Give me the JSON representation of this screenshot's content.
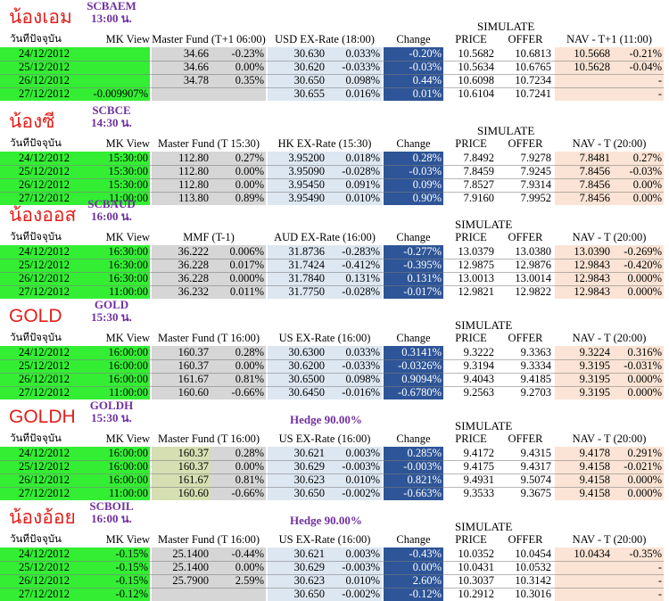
{
  "headers": {
    "date": "วันที่ปัจจุบัน",
    "mk_view": "MK View",
    "change": "Change",
    "price": "PRICE",
    "offer": "OFFER",
    "simulate": "SIMULATE"
  },
  "colors": {
    "title_red": "#e0201b",
    "code_purple": "#7030a0",
    "green": "#33ee33",
    "grey": "#d6d6d6",
    "light_blue": "#dde7f2",
    "dark_blue": "#2e5597",
    "peach": "#fbe4d5",
    "olive": "#d5dfb2"
  },
  "sections": [
    {
      "title": "น้องเอม",
      "code": "SCBAEM",
      "time": "13:00 น.",
      "hedge": "",
      "master_header": "Master Fund (T+1 06:00)",
      "fx_header": "USD EX-Rate (18:00)",
      "nav_header": "NAV - T+1 (11:00)",
      "rows": [
        {
          "date": "24/12/2012",
          "mk": "",
          "m1": "34.66",
          "m2": "-0.23%",
          "fx1": "30.630",
          "fx2": "0.033%",
          "chg": "-0.20%",
          "price": "10.5682",
          "offer": "10.6813",
          "nav1": "10.5668",
          "nav2": "-0.21%"
        },
        {
          "date": "25/12/2012",
          "mk": "",
          "m1": "34.66",
          "m2": "0.00%",
          "fx1": "30.620",
          "fx2": "-0.033%",
          "chg": "-0.03%",
          "price": "10.5634",
          "offer": "10.6765",
          "nav1": "10.5628",
          "nav2": "-0.04%"
        },
        {
          "date": "26/12/2012",
          "mk": "",
          "m1": "34.78",
          "m2": "0.35%",
          "fx1": "30.650",
          "fx2": "0.098%",
          "chg": "0.44%",
          "price": "10.6098",
          "offer": "10.7234",
          "nav1": "",
          "nav2": "-"
        },
        {
          "date": "27/12/2012",
          "mk": "-0.009907%",
          "m1": "",
          "m2": "",
          "fx1": "30.655",
          "fx2": "0.016%",
          "chg": "0.01%",
          "price": "10.6104",
          "offer": "10.7241",
          "nav1": "",
          "nav2": "-"
        }
      ]
    },
    {
      "title": "น้องซี",
      "code": "SCBCE",
      "time": "14:30 น.",
      "hedge": "",
      "master_header": "Master Fund (T 15:30)",
      "fx_header": "HK EX-Rate (15:30)",
      "nav_header": "NAV - T (20:00)",
      "rows": [
        {
          "date": "24/12/2012",
          "mk": "15:30:00",
          "m1": "112.80",
          "m2": "0.27%",
          "fx1": "3.95200",
          "fx2": "0.018%",
          "chg": "0.28%",
          "price": "7.8492",
          "offer": "7.9278",
          "nav1": "7.8481",
          "nav2": "0.27%"
        },
        {
          "date": "25/12/2012",
          "mk": "15:30:00",
          "m1": "112.80",
          "m2": "0.00%",
          "fx1": "3.95090",
          "fx2": "-0.028%",
          "chg": "-0.03%",
          "price": "7.8459",
          "offer": "7.9245",
          "nav1": "7.8456",
          "nav2": "-0.03%"
        },
        {
          "date": "26/12/2012",
          "mk": "15:30:00",
          "m1": "112.80",
          "m2": "0.00%",
          "fx1": "3.95450",
          "fx2": "0.091%",
          "chg": "0.09%",
          "price": "7.8527",
          "offer": "7.9314",
          "nav1": "7.8456",
          "nav2": "0.00%"
        },
        {
          "date": "27/12/2012",
          "mk": "11:00:00",
          "m1": "113.80",
          "m2": "0.89%",
          "fx1": "3.95490",
          "fx2": "0.010%",
          "chg": "0.90%",
          "price": "7.9160",
          "offer": "7.9952",
          "nav1": "7.8456",
          "nav2": "0.00%"
        }
      ]
    },
    {
      "title": "น้องออส",
      "code": "SCBAUD",
      "time": "16:00 น.",
      "hedge": "",
      "master_header": "MMF (T-1)",
      "fx_header": "AUD EX-Rate (16:00)",
      "nav_header": "NAV - T (20:00)",
      "rows": [
        {
          "date": "24/12/2012",
          "mk": "16:30:00",
          "m1": "36.222",
          "m2": "0.006%",
          "fx1": "31.8736",
          "fx2": "-0.283%",
          "chg": "-0.277%",
          "price": "13.0379",
          "offer": "13.0380",
          "nav1": "13.0390",
          "nav2": "-0.269%"
        },
        {
          "date": "25/12/2012",
          "mk": "16:30:00",
          "m1": "36.228",
          "m2": "0.017%",
          "fx1": "31.7424",
          "fx2": "-0.412%",
          "chg": "-0.395%",
          "price": "12.9875",
          "offer": "12.9876",
          "nav1": "12.9843",
          "nav2": "-0.420%"
        },
        {
          "date": "26/12/2012",
          "mk": "16:30:00",
          "m1": "36.228",
          "m2": "0.000%",
          "fx1": "31.7840",
          "fx2": "0.131%",
          "chg": "0.131%",
          "price": "13.0013",
          "offer": "13.0014",
          "nav1": "12.9843",
          "nav2": "0.000%"
        },
        {
          "date": "27/12/2012",
          "mk": "11:00:00",
          "m1": "36.232",
          "m2": "0.011%",
          "fx1": "31.7750",
          "fx2": "-0.028%",
          "chg": "-0.017%",
          "price": "12.9821",
          "offer": "12.9822",
          "nav1": "12.9843",
          "nav2": "0.000%"
        }
      ]
    },
    {
      "title": "GOLD",
      "code": "GOLD",
      "time": "15:30 น.",
      "hedge": "",
      "master_header": "Master Fund (T 16:00)",
      "fx_header": "US EX-Rate (16:00)",
      "nav_header": "NAV - T (20:00)",
      "rows": [
        {
          "date": "24/12/2012",
          "mk": "16:00:00",
          "m1": "160.37",
          "m2": "0.28%",
          "fx1": "30.6300",
          "fx2": "0.033%",
          "chg": "0.3141%",
          "price": "9.3222",
          "offer": "9.3363",
          "nav1": "9.3224",
          "nav2": "0.316%"
        },
        {
          "date": "25/12/2012",
          "mk": "16:00:00",
          "m1": "160.37",
          "m2": "0.00%",
          "fx1": "30.6200",
          "fx2": "-0.033%",
          "chg": "-0.0326%",
          "price": "9.3194",
          "offer": "9.3334",
          "nav1": "9.3195",
          "nav2": "-0.031%"
        },
        {
          "date": "26/12/2012",
          "mk": "16:00:00",
          "m1": "161.67",
          "m2": "0.81%",
          "fx1": "30.6500",
          "fx2": "0.098%",
          "chg": "0.9094%",
          "price": "9.4043",
          "offer": "9.4185",
          "nav1": "9.3195",
          "nav2": "0.000%"
        },
        {
          "date": "27/12/2012",
          "mk": "11:00:00",
          "m1": "160.60",
          "m2": "-0.66%",
          "fx1": "30.6450",
          "fx2": "-0.016%",
          "chg": "-0.6780%",
          "price": "9.2563",
          "offer": "9.2703",
          "nav1": "9.3195",
          "nav2": "0.000%"
        }
      ]
    },
    {
      "title": "GOLDH",
      "code": "GOLDH",
      "time": "15:30 น.",
      "hedge": "Hedge 90.00%",
      "master_header": "Master Fund (T 16:00)",
      "fx_header": "US EX-Rate (16:00)",
      "nav_header": "NAV - T (20:00)",
      "rows": [
        {
          "date": "24/12/2012",
          "mk": "16:00:00",
          "m1": "160.37",
          "m2": "0.28%",
          "fx1": "30.621",
          "fx2": "0.003%",
          "chg": "0.285%",
          "price": "9.4172",
          "offer": "9.4315",
          "nav1": "9.4178",
          "nav2": "0.291%"
        },
        {
          "date": "25/12/2012",
          "mk": "16:00:00",
          "m1": "160.37",
          "m2": "0.00%",
          "fx1": "30.629",
          "fx2": "-0.003%",
          "chg": "-0.003%",
          "price": "9.4175",
          "offer": "9.4317",
          "nav1": "9.4158",
          "nav2": "-0.021%"
        },
        {
          "date": "26/12/2012",
          "mk": "16:00:00",
          "m1": "161.67",
          "m2": "0.81%",
          "fx1": "30.623",
          "fx2": "0.010%",
          "chg": "0.821%",
          "price": "9.4931",
          "offer": "9.5074",
          "nav1": "9.4158",
          "nav2": "0.000%"
        },
        {
          "date": "27/12/2012",
          "mk": "11:00:00",
          "m1": "160.60",
          "m2": "-0.66%",
          "fx1": "30.650",
          "fx2": "-0.002%",
          "chg": "-0.663%",
          "price": "9.3533",
          "offer": "9.3675",
          "nav1": "9.4158",
          "nav2": "0.000%"
        }
      ]
    },
    {
      "title": "น้องอ้อย",
      "code": "SCBOIL",
      "time": "16:00 น.",
      "hedge": "Hedge 90.00%",
      "master_header": "Master Fund (T 16:00)",
      "fx_header": "US EX-Rate (16:00)",
      "nav_header": "NAV - T (20:00)",
      "rows": [
        {
          "date": "24/12/2012",
          "mk": "-0.15%",
          "m1": "25.1400",
          "m2": "-0.44%",
          "fx1": "30.621",
          "fx2": "0.003%",
          "chg": "-0.43%",
          "price": "10.0352",
          "offer": "10.0454",
          "nav1": "10.0434",
          "nav2": "-0.35%"
        },
        {
          "date": "25/12/2012",
          "mk": "-0.15%",
          "m1": "25.1400",
          "m2": "0.00%",
          "fx1": "30.629",
          "fx2": "-0.003%",
          "chg": "0.00%",
          "price": "10.0431",
          "offer": "10.0532",
          "nav1": "",
          "nav2": "-"
        },
        {
          "date": "26/12/2012",
          "mk": "-0.15%",
          "m1": "25.7900",
          "m2": "2.59%",
          "fx1": "30.623",
          "fx2": "0.010%",
          "chg": "2.60%",
          "price": "10.3037",
          "offer": "10.3142",
          "nav1": "",
          "nav2": "-"
        },
        {
          "date": "27/12/2012",
          "mk": "-0.12%",
          "m1": "",
          "m2": "",
          "fx1": "30.650",
          "fx2": "-0.002%",
          "chg": "-0.12%",
          "price": "10.2912",
          "offer": "10.3016",
          "nav1": "",
          "nav2": "-"
        }
      ]
    }
  ]
}
